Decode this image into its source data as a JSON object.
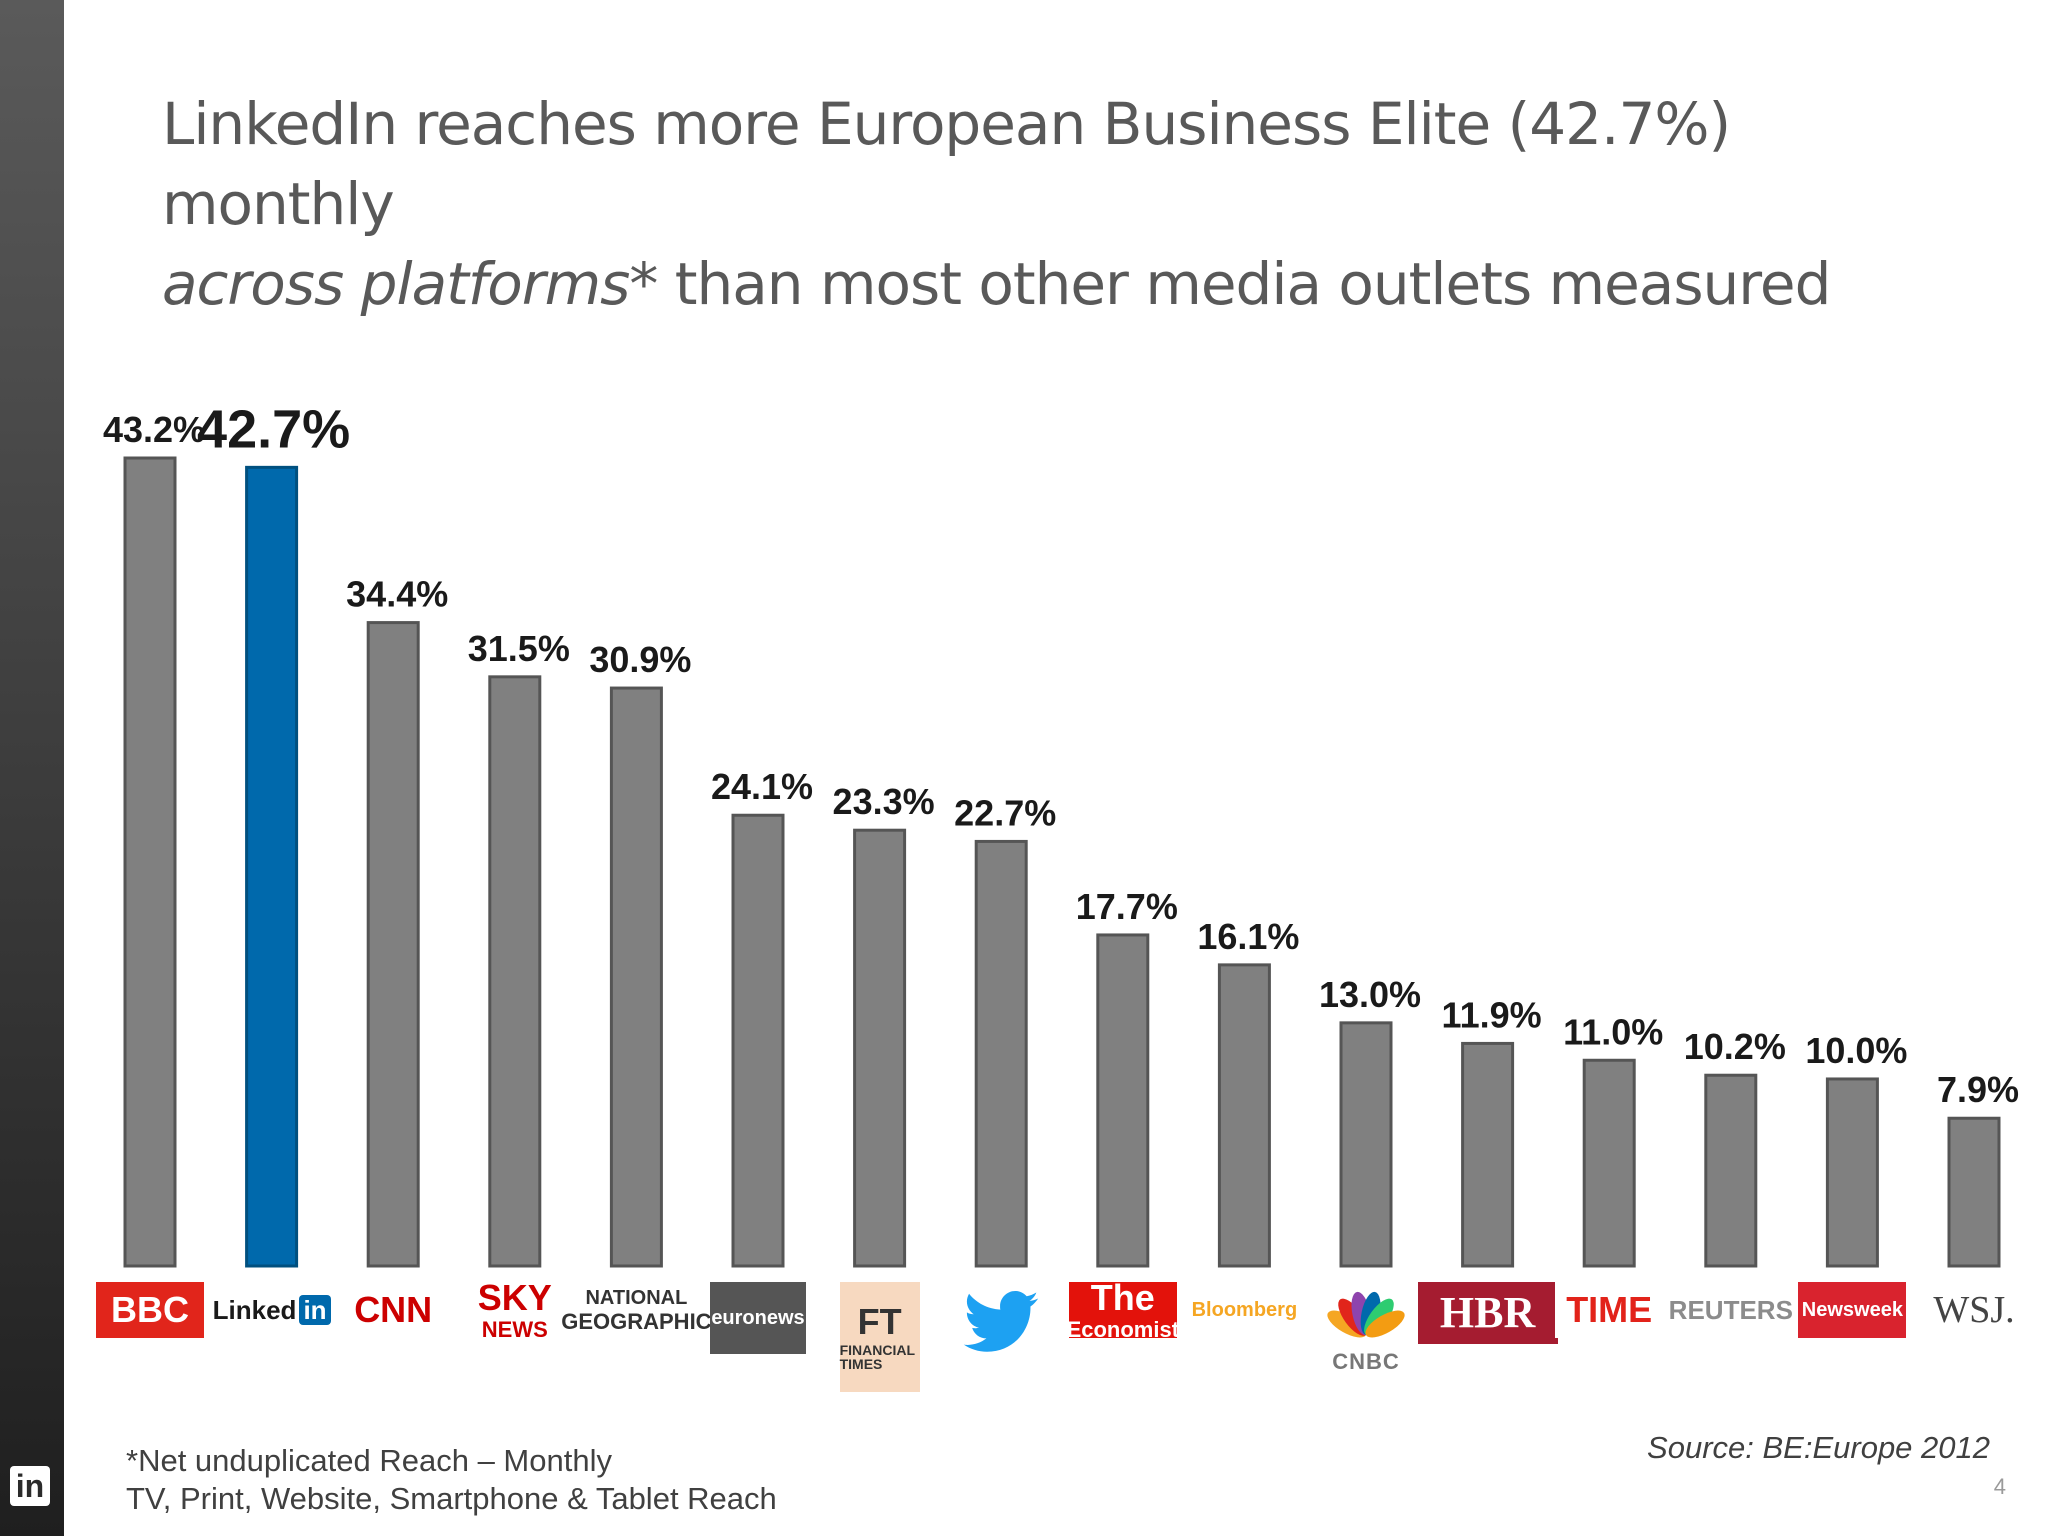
{
  "title": {
    "line1": "LinkedIn reaches more European Business Elite (42.7%) monthly",
    "line2_italic": "across platforms",
    "line2_rest": "* than most other media outlets measured"
  },
  "chart_data": {
    "type": "bar",
    "categories": [
      "BBC",
      "LinkedIn",
      "CNN",
      "SKY NEWS",
      "NATIONAL GEOGRAPHIC",
      "euronews",
      "FT FINANCIAL TIMES",
      "Twitter",
      "The Economist",
      "Bloomberg",
      "CNBC",
      "HBR",
      "TIME",
      "REUTERS",
      "Newsweek",
      "WSJ."
    ],
    "values": [
      43.2,
      42.7,
      34.4,
      31.5,
      30.9,
      24.1,
      23.3,
      22.7,
      17.7,
      16.1,
      13.0,
      11.9,
      11.0,
      10.2,
      10.0,
      7.9
    ],
    "value_labels": [
      "43.2%",
      "42.7%",
      "34.4%",
      "31.5%",
      "30.9%",
      "24.1%",
      "23.3%",
      "22.7%",
      "17.7%",
      "16.1%",
      "13.0%",
      "11.9%",
      "11.0%",
      "10.2%",
      "10.0%",
      "7.9%"
    ],
    "highlight": "LinkedIn",
    "ylim": [
      0,
      43.2
    ],
    "grid": false,
    "colors": {
      "bar": "#808080",
      "highlight": "#0069ac"
    }
  },
  "logos": [
    {
      "text": "BBC",
      "bg": "#e1251b",
      "color": "#ffffff"
    },
    {
      "text": "Linked",
      "badge": "in",
      "bg": "#ffffff",
      "color": "#1a1a1a"
    },
    {
      "text": "CNN",
      "bg": "#ffffff",
      "color": "#cc0000"
    },
    {
      "text": "SKY",
      "sub": "NEWS",
      "bg": "#ffffff",
      "color": "#cc0000"
    },
    {
      "text": "NATIONAL",
      "sub": "GEOGRAPHIC",
      "bg": "#ffffff",
      "color": "#333333"
    },
    {
      "text": "euronews",
      "bg": "#555555",
      "color": "#ffffff"
    },
    {
      "text": "FT",
      "sub": "FINANCIAL TIMES",
      "bg": "#f7d9c0",
      "color": "#333333"
    },
    {
      "text": "",
      "icon": "twitter-bird",
      "bg": "#ffffff",
      "color": "#1da1f2"
    },
    {
      "text": "The",
      "sub": "Economist",
      "bg": "#e3120b",
      "color": "#ffffff"
    },
    {
      "text": "Bloomberg",
      "bg": "#ffffff",
      "color": "#f5a623"
    },
    {
      "text": "CNBC",
      "icon": "peacock",
      "bg": "#ffffff",
      "color": "#777777"
    },
    {
      "text": "HBR",
      "bg": "#a51c30",
      "color": "#ffffff"
    },
    {
      "text": "TIME",
      "bg": "#ffffff",
      "color": "#e2231a"
    },
    {
      "text": "REUTERS",
      "bg": "#ffffff",
      "color": "#8c8c8c"
    },
    {
      "text": "Newsweek",
      "bg": "#d9232e",
      "color": "#ffffff"
    },
    {
      "text": "WSJ.",
      "bg": "#ffffff",
      "color": "#444444"
    }
  ],
  "footnote": {
    "line1": "*Net unduplicated Reach – Monthly",
    "line2": "TV, Print, Website, Smartphone & Tablet Reach"
  },
  "source": "Source:  BE:Europe 2012",
  "page_number": "4",
  "side_logo": "in"
}
